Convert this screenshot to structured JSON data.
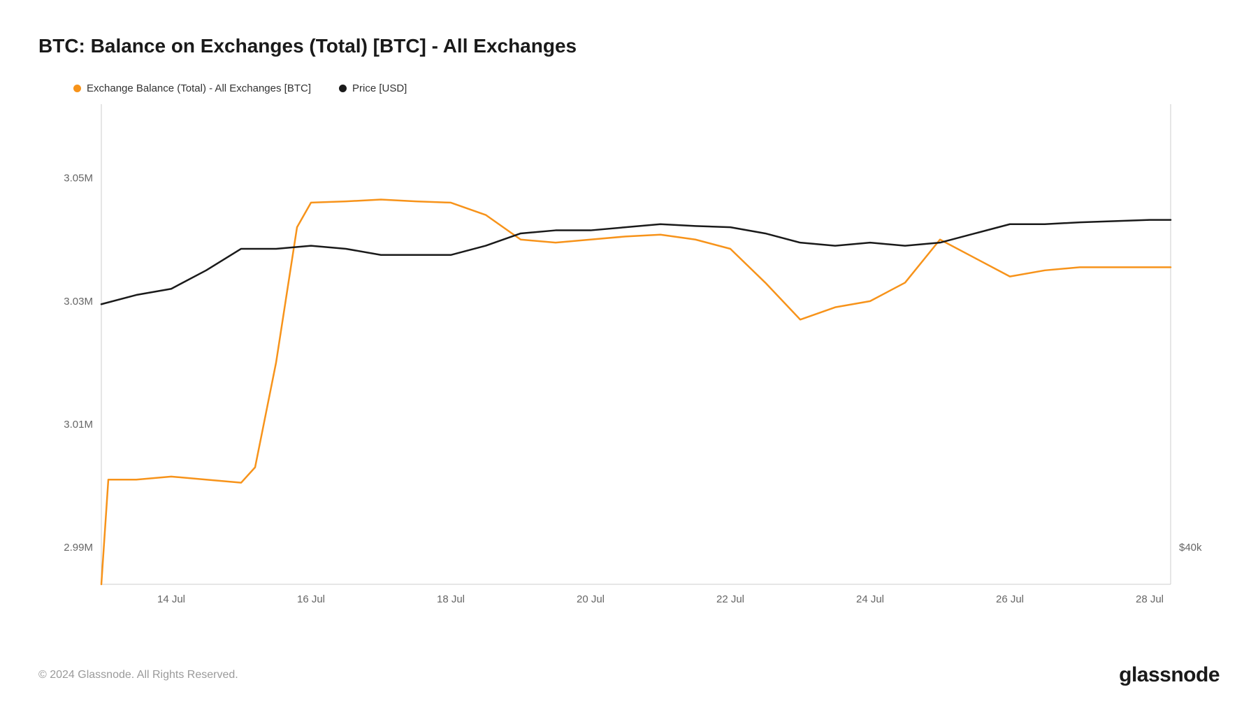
{
  "title": "BTC: Balance on Exchanges (Total) [BTC] - All Exchanges",
  "legend": {
    "series1": {
      "label": "Exchange Balance (Total) - All Exchanges [BTC]",
      "color": "#f7931a"
    },
    "series2": {
      "label": "Price [USD]",
      "color": "#1a1a1a"
    }
  },
  "copyright": "© 2024 Glassnode. All Rights Reserved.",
  "brand": "glassnode",
  "chart": {
    "type": "line",
    "background_color": "#ffffff",
    "grid_color": "#f0f0f0",
    "border_color": "#cccccc",
    "axis_text_color": "#666666",
    "axis_fontsize": 15,
    "line_width": 2.5,
    "x": {
      "min": 13,
      "max": 28.3,
      "ticks": [
        14,
        16,
        18,
        20,
        22,
        24,
        26,
        28
      ],
      "tick_labels": [
        "14 Jul",
        "16 Jul",
        "18 Jul",
        "20 Jul",
        "22 Jul",
        "24 Jul",
        "26 Jul",
        "28 Jul"
      ]
    },
    "y_left": {
      "min": 2.984,
      "max": 3.062,
      "ticks": [
        2.99,
        3.01,
        3.03,
        3.05
      ],
      "tick_labels": [
        "2.99M",
        "3.01M",
        "3.03M",
        "3.05M"
      ]
    },
    "y_right": {
      "ticks_at_left_value": [
        2.99
      ],
      "tick_labels": [
        "$40k"
      ]
    },
    "series": {
      "balance": {
        "color": "#f7931a",
        "x": [
          13,
          13.1,
          13.5,
          14,
          14.5,
          15,
          15.2,
          15.5,
          15.8,
          16,
          16.5,
          17,
          17.5,
          18,
          18.5,
          19,
          19.5,
          20,
          20.5,
          21,
          21.5,
          22,
          22.5,
          23,
          23.5,
          24,
          24.5,
          25,
          25.5,
          26,
          26.5,
          27,
          27.5,
          28,
          28.3
        ],
        "y": [
          2.984,
          3.001,
          3.001,
          3.0015,
          3.001,
          3.0005,
          3.003,
          3.02,
          3.042,
          3.046,
          3.0462,
          3.0465,
          3.0462,
          3.046,
          3.044,
          3.04,
          3.0395,
          3.04,
          3.0405,
          3.0408,
          3.04,
          3.0385,
          3.033,
          3.027,
          3.029,
          3.03,
          3.033,
          3.04,
          3.037,
          3.034,
          3.035,
          3.0355,
          3.0355,
          3.0355,
          3.0355
        ]
      },
      "price": {
        "color": "#1a1a1a",
        "x": [
          13,
          13.5,
          14,
          14.5,
          15,
          15.5,
          16,
          16.5,
          17,
          17.5,
          18,
          18.5,
          19,
          19.5,
          20,
          20.5,
          21,
          21.5,
          22,
          22.5,
          23,
          23.5,
          24,
          24.5,
          25,
          25.5,
          26,
          26.5,
          27,
          27.5,
          28,
          28.3
        ],
        "y": [
          3.0295,
          3.031,
          3.032,
          3.035,
          3.0385,
          3.0385,
          3.039,
          3.0385,
          3.0375,
          3.0375,
          3.0375,
          3.039,
          3.041,
          3.0415,
          3.0415,
          3.042,
          3.0425,
          3.0422,
          3.042,
          3.041,
          3.0395,
          3.039,
          3.0395,
          3.039,
          3.0395,
          3.041,
          3.0425,
          3.0425,
          3.0428,
          3.043,
          3.0432,
          3.0432
        ]
      }
    }
  }
}
